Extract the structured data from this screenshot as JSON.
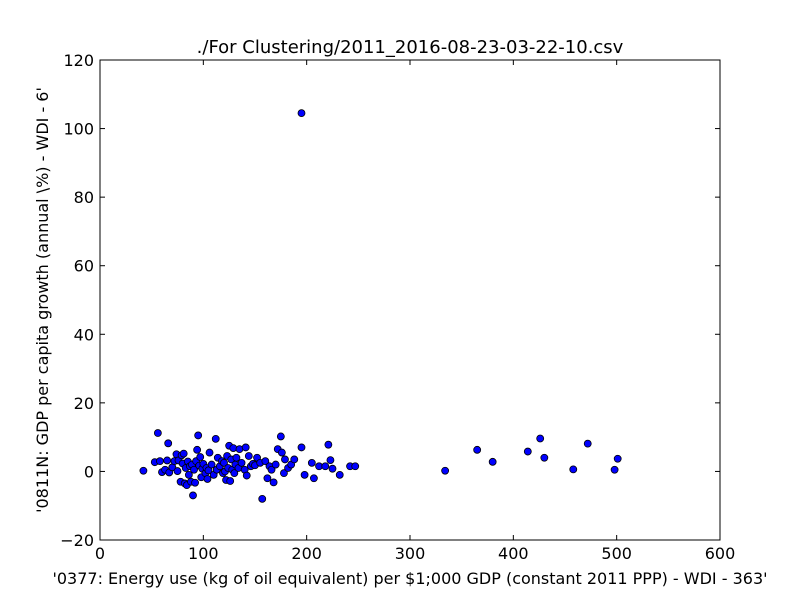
{
  "chart_data": {
    "type": "scatter",
    "title": "./For Clustering/2011_2016-08-23-03-22-10.csv",
    "xlabel": "'0377: Energy use (kg of oil equivalent) per $1;000 GDP  (constant 2011 PPP) - WDI - 363'",
    "ylabel": "'0811N: GDP per capita growth  (annual \\%) - WDI - 6'",
    "xlim": [
      0,
      600
    ],
    "ylim": [
      -20,
      120
    ],
    "xticks": [
      0,
      100,
      200,
      300,
      400,
      500,
      600
    ],
    "yticks": [
      -20,
      0,
      20,
      40,
      60,
      80,
      100,
      120
    ],
    "grid": false,
    "marker_color": "#0000ff",
    "points": [
      {
        "x": 195,
        "y": 104.5
      },
      {
        "x": 42,
        "y": 0.2
      },
      {
        "x": 53,
        "y": 2.7
      },
      {
        "x": 56,
        "y": 11.2
      },
      {
        "x": 58,
        "y": 3.0
      },
      {
        "x": 60,
        "y": -0.2
      },
      {
        "x": 63,
        "y": 0.5
      },
      {
        "x": 65,
        "y": 3.2
      },
      {
        "x": 66,
        "y": 8.2
      },
      {
        "x": 67,
        "y": -0.3
      },
      {
        "x": 70,
        "y": 1.2
      },
      {
        "x": 72,
        "y": 3.0
      },
      {
        "x": 74,
        "y": 5.0
      },
      {
        "x": 75,
        "y": 0.1
      },
      {
        "x": 76,
        "y": 3.2
      },
      {
        "x": 78,
        "y": -3.0
      },
      {
        "x": 79,
        "y": 4.7
      },
      {
        "x": 80,
        "y": 2.3
      },
      {
        "x": 81,
        "y": 5.2
      },
      {
        "x": 82,
        "y": -3.5
      },
      {
        "x": 83,
        "y": 1.0
      },
      {
        "x": 84,
        "y": -4.0
      },
      {
        "x": 85,
        "y": 2.9
      },
      {
        "x": 86,
        "y": -1.0
      },
      {
        "x": 87,
        "y": 1.5
      },
      {
        "x": 88,
        "y": -3.0
      },
      {
        "x": 89,
        "y": 2.0
      },
      {
        "x": 90,
        "y": -7.0
      },
      {
        "x": 91,
        "y": 0.5
      },
      {
        "x": 92,
        "y": -3.3
      },
      {
        "x": 93,
        "y": 3.0
      },
      {
        "x": 94,
        "y": 6.3
      },
      {
        "x": 95,
        "y": 10.5
      },
      {
        "x": 96,
        "y": 1.7
      },
      {
        "x": 97,
        "y": 4.2
      },
      {
        "x": 98,
        "y": -1.7
      },
      {
        "x": 99,
        "y": 0.8
      },
      {
        "x": 100,
        "y": 2.2
      },
      {
        "x": 102,
        "y": -0.5
      },
      {
        "x": 103,
        "y": 1.0
      },
      {
        "x": 104,
        "y": -2.2
      },
      {
        "x": 105,
        "y": 0.3
      },
      {
        "x": 106,
        "y": 5.5
      },
      {
        "x": 108,
        "y": 2.0
      },
      {
        "x": 110,
        "y": -1.0
      },
      {
        "x": 112,
        "y": 9.5
      },
      {
        "x": 113,
        "y": 0.5
      },
      {
        "x": 114,
        "y": 4.0
      },
      {
        "x": 116,
        "y": 1.5
      },
      {
        "x": 118,
        "y": 3.0
      },
      {
        "x": 119,
        "y": -0.5
      },
      {
        "x": 120,
        "y": 2.5
      },
      {
        "x": 121,
        "y": 0.0
      },
      {
        "x": 122,
        "y": -2.5
      },
      {
        "x": 123,
        "y": 4.5
      },
      {
        "x": 124,
        "y": 1.0
      },
      {
        "x": 125,
        "y": 7.5
      },
      {
        "x": 126,
        "y": -2.8
      },
      {
        "x": 127,
        "y": 3.5
      },
      {
        "x": 128,
        "y": 0.5
      },
      {
        "x": 129,
        "y": 6.8
      },
      {
        "x": 130,
        "y": -0.5
      },
      {
        "x": 131,
        "y": 2.0
      },
      {
        "x": 132,
        "y": 4.0
      },
      {
        "x": 134,
        "y": 1.0
      },
      {
        "x": 135,
        "y": 6.5
      },
      {
        "x": 137,
        "y": 2.5
      },
      {
        "x": 140,
        "y": 0.5
      },
      {
        "x": 141,
        "y": 7.0
      },
      {
        "x": 142,
        "y": -1.2
      },
      {
        "x": 144,
        "y": 4.5
      },
      {
        "x": 146,
        "y": 1.5
      },
      {
        "x": 148,
        "y": 2.2
      },
      {
        "x": 150,
        "y": 1.8
      },
      {
        "x": 152,
        "y": 4.0
      },
      {
        "x": 155,
        "y": 2.5
      },
      {
        "x": 157,
        "y": -8.0
      },
      {
        "x": 160,
        "y": 3.0
      },
      {
        "x": 162,
        "y": -2.0
      },
      {
        "x": 164,
        "y": 1.5
      },
      {
        "x": 166,
        "y": 0.5
      },
      {
        "x": 168,
        "y": -3.2
      },
      {
        "x": 170,
        "y": 2.0
      },
      {
        "x": 172,
        "y": 6.5
      },
      {
        "x": 175,
        "y": 10.2
      },
      {
        "x": 176,
        "y": 5.5
      },
      {
        "x": 178,
        "y": -0.5
      },
      {
        "x": 179,
        "y": 3.5
      },
      {
        "x": 182,
        "y": 1.0
      },
      {
        "x": 185,
        "y": 2.0
      },
      {
        "x": 188,
        "y": 3.5
      },
      {
        "x": 195,
        "y": 7.0
      },
      {
        "x": 198,
        "y": -1.0
      },
      {
        "x": 205,
        "y": 2.5
      },
      {
        "x": 207,
        "y": -2.0
      },
      {
        "x": 212,
        "y": 1.5
      },
      {
        "x": 218,
        "y": 1.5
      },
      {
        "x": 221,
        "y": 7.8
      },
      {
        "x": 223,
        "y": 3.3
      },
      {
        "x": 225,
        "y": 0.8
      },
      {
        "x": 232,
        "y": -1.0
      },
      {
        "x": 242,
        "y": 1.5
      },
      {
        "x": 247,
        "y": 1.5
      },
      {
        "x": 334,
        "y": 0.2
      },
      {
        "x": 365,
        "y": 6.3
      },
      {
        "x": 380,
        "y": 2.8
      },
      {
        "x": 414,
        "y": 5.8
      },
      {
        "x": 426,
        "y": 9.6
      },
      {
        "x": 430,
        "y": 4.0
      },
      {
        "x": 458,
        "y": 0.6
      },
      {
        "x": 472,
        "y": 8.1
      },
      {
        "x": 498,
        "y": 0.5
      },
      {
        "x": 501,
        "y": 3.7
      }
    ]
  }
}
